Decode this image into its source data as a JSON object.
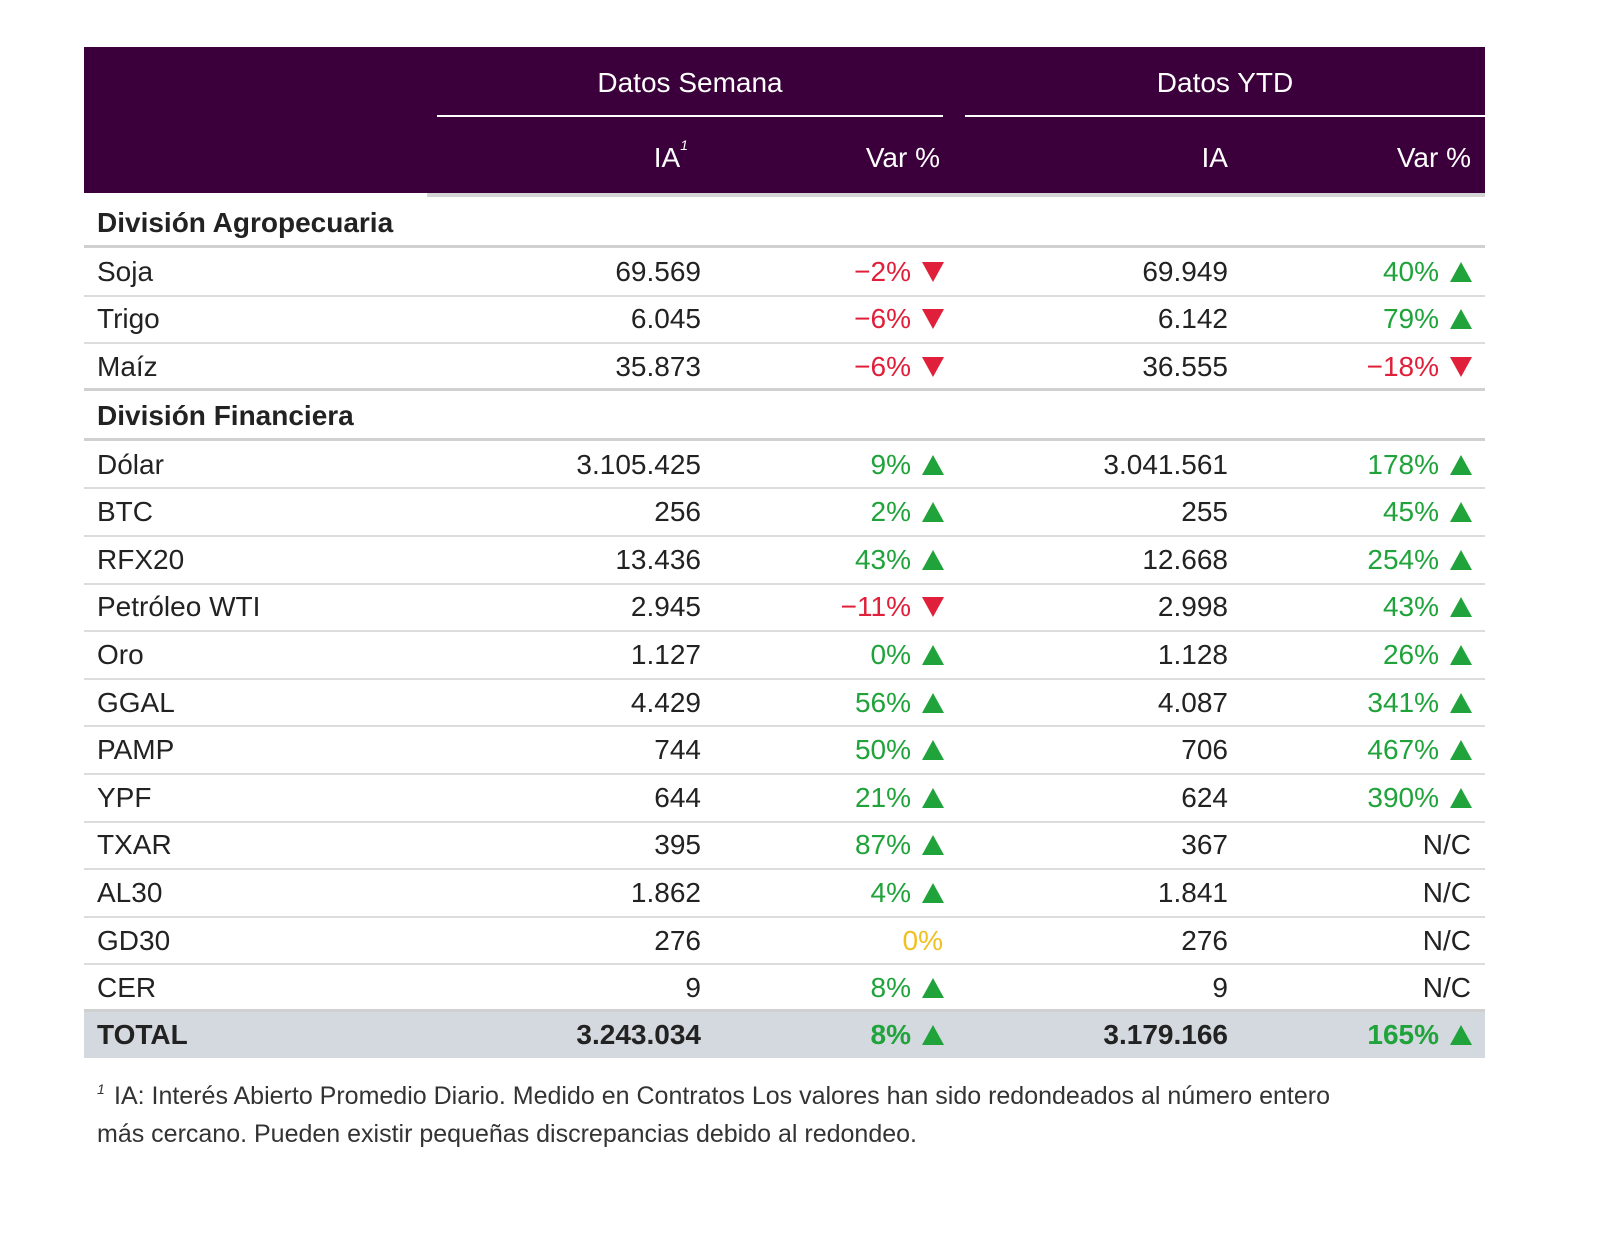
{
  "header": {
    "group1": "Datos Semana",
    "group2": "Datos YTD",
    "columns": [
      "IA",
      "Var %",
      "IA",
      "Var %"
    ],
    "footnote_mark": "1"
  },
  "sections": [
    {
      "title": "División Agropecuaria",
      "rows": [
        {
          "name": "Soja",
          "week_ia": "69.569",
          "week_var": {
            "text": "−2%",
            "trend": "down"
          },
          "ytd_ia": "69.949",
          "ytd_var": {
            "text": "40%",
            "trend": "up"
          }
        },
        {
          "name": "Trigo",
          "week_ia": "6.045",
          "week_var": {
            "text": "−6%",
            "trend": "down"
          },
          "ytd_ia": "6.142",
          "ytd_var": {
            "text": "79%",
            "trend": "up"
          }
        },
        {
          "name": "Maíz",
          "week_ia": "35.873",
          "week_var": {
            "text": "−6%",
            "trend": "down"
          },
          "ytd_ia": "36.555",
          "ytd_var": {
            "text": "−18%",
            "trend": "down"
          }
        }
      ]
    },
    {
      "title": "División Financiera",
      "rows": [
        {
          "name": "Dólar",
          "week_ia": "3.105.425",
          "week_var": {
            "text": "9%",
            "trend": "up"
          },
          "ytd_ia": "3.041.561",
          "ytd_var": {
            "text": "178%",
            "trend": "up"
          }
        },
        {
          "name": "BTC",
          "week_ia": "256",
          "week_var": {
            "text": "2%",
            "trend": "up"
          },
          "ytd_ia": "255",
          "ytd_var": {
            "text": "45%",
            "trend": "up"
          }
        },
        {
          "name": "RFX20",
          "week_ia": "13.436",
          "week_var": {
            "text": "43%",
            "trend": "up"
          },
          "ytd_ia": "12.668",
          "ytd_var": {
            "text": "254%",
            "trend": "up"
          }
        },
        {
          "name": "Petróleo WTI",
          "week_ia": "2.945",
          "week_var": {
            "text": "−11%",
            "trend": "down"
          },
          "ytd_ia": "2.998",
          "ytd_var": {
            "text": "43%",
            "trend": "up"
          }
        },
        {
          "name": "Oro",
          "week_ia": "1.127",
          "week_var": {
            "text": "0%",
            "trend": "up"
          },
          "ytd_ia": "1.128",
          "ytd_var": {
            "text": "26%",
            "trend": "up"
          }
        },
        {
          "name": "GGAL",
          "week_ia": "4.429",
          "week_var": {
            "text": "56%",
            "trend": "up"
          },
          "ytd_ia": "4.087",
          "ytd_var": {
            "text": "341%",
            "trend": "up"
          }
        },
        {
          "name": "PAMP",
          "week_ia": "744",
          "week_var": {
            "text": "50%",
            "trend": "up"
          },
          "ytd_ia": "706",
          "ytd_var": {
            "text": "467%",
            "trend": "up"
          }
        },
        {
          "name": "YPF",
          "week_ia": "644",
          "week_var": {
            "text": "21%",
            "trend": "up"
          },
          "ytd_ia": "624",
          "ytd_var": {
            "text": "390%",
            "trend": "up"
          }
        },
        {
          "name": "TXAR",
          "week_ia": "395",
          "week_var": {
            "text": "87%",
            "trend": "up"
          },
          "ytd_ia": "367",
          "ytd_var": {
            "text": "N/C"
          }
        },
        {
          "name": "AL30",
          "week_ia": "1.862",
          "week_var": {
            "text": "4%",
            "trend": "up"
          },
          "ytd_ia": "1.841",
          "ytd_var": {
            "text": "N/C"
          }
        },
        {
          "name": "GD30",
          "week_ia": "276",
          "week_var": {
            "text": "0%",
            "trend": "flat"
          },
          "ytd_ia": "276",
          "ytd_var": {
            "text": "N/C"
          }
        },
        {
          "name": "CER",
          "week_ia": "9",
          "week_var": {
            "text": "8%",
            "trend": "up"
          },
          "ytd_ia": "9",
          "ytd_var": {
            "text": "N/C"
          }
        }
      ]
    }
  ],
  "total": {
    "name": "TOTAL",
    "week_ia": "3.243.034",
    "week_var": {
      "text": "8%",
      "trend": "up"
    },
    "ytd_ia": "3.179.166",
    "ytd_var": {
      "text": "165%",
      "trend": "up"
    }
  },
  "footnote": {
    "mark": "1",
    "lines": [
      "IA: Interés Abierto Promedio Diario. Medido en Contratos Los valores han sido redondeados al número entero",
      "más cercano. Pueden existir pequeñas discrepancias debido al redondeo."
    ]
  }
}
